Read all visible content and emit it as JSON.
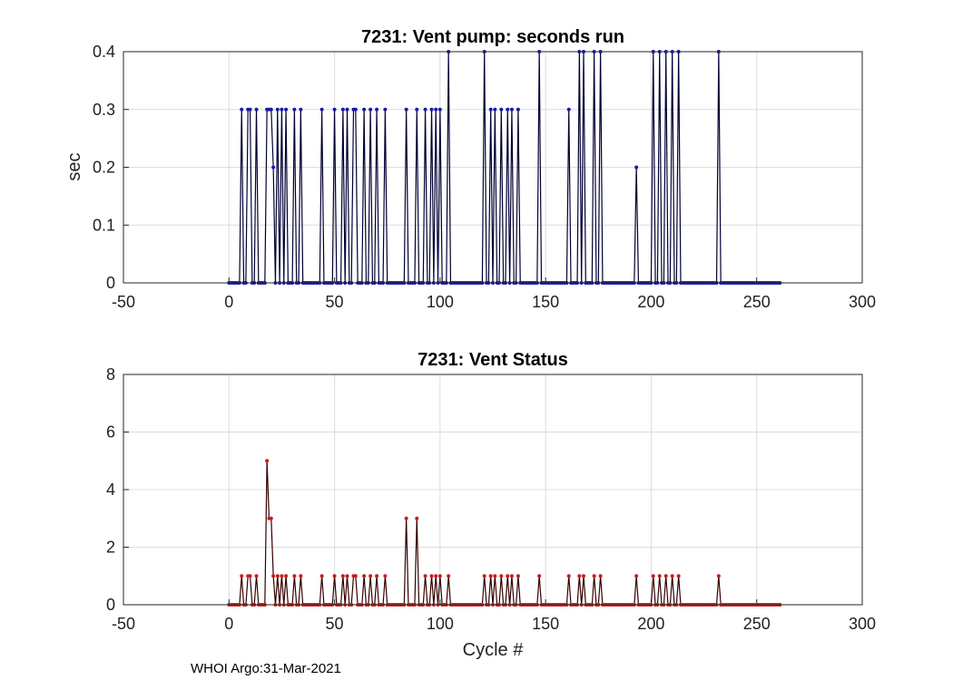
{
  "footer": {
    "text": "WHOI Argo:31-Mar-2021"
  },
  "colors": {
    "top_series": "#1a1aa6",
    "top_stem": "#000033",
    "bottom_series": "#cc1a1a",
    "bottom_stem": "#330000",
    "grid": "#dcdcdc"
  },
  "chart_data": [
    {
      "type": "line",
      "title": "7231: Vent pump: seconds run",
      "xlabel": "",
      "ylabel": "sec",
      "xlim": [
        -50,
        300
      ],
      "ylim": [
        0,
        0.4
      ],
      "xticks": [
        -50,
        0,
        50,
        100,
        150,
        200,
        250,
        300
      ],
      "yticks": [
        0,
        0.1,
        0.2,
        0.3,
        0.4
      ],
      "grid": true,
      "x_range": [
        0,
        261
      ],
      "baseline": 0,
      "nonzero_points": [
        [
          6,
          0.3
        ],
        [
          9,
          0.3
        ],
        [
          10,
          0.3
        ],
        [
          13,
          0.3
        ],
        [
          18,
          0.3
        ],
        [
          19,
          0.3
        ],
        [
          20,
          0.3
        ],
        [
          21,
          0.2
        ],
        [
          23,
          0.3
        ],
        [
          25,
          0.3
        ],
        [
          27,
          0.3
        ],
        [
          31,
          0.3
        ],
        [
          34,
          0.3
        ],
        [
          44,
          0.3
        ],
        [
          50,
          0.3
        ],
        [
          54,
          0.3
        ],
        [
          56,
          0.3
        ],
        [
          59,
          0.3
        ],
        [
          60,
          0.3
        ],
        [
          64,
          0.3
        ],
        [
          67,
          0.3
        ],
        [
          70,
          0.3
        ],
        [
          74,
          0.3
        ],
        [
          84,
          0.3
        ],
        [
          89,
          0.3
        ],
        [
          93,
          0.3
        ],
        [
          96,
          0.3
        ],
        [
          98,
          0.3
        ],
        [
          100,
          0.3
        ],
        [
          104,
          0.4
        ],
        [
          121,
          0.4
        ],
        [
          124,
          0.3
        ],
        [
          126,
          0.3
        ],
        [
          129,
          0.3
        ],
        [
          132,
          0.3
        ],
        [
          134,
          0.3
        ],
        [
          137,
          0.3
        ],
        [
          147,
          0.4
        ],
        [
          161,
          0.3
        ],
        [
          166,
          0.4
        ],
        [
          168,
          0.4
        ],
        [
          173,
          0.4
        ],
        [
          176,
          0.4
        ],
        [
          193,
          0.2
        ],
        [
          201,
          0.4
        ],
        [
          204,
          0.4
        ],
        [
          207,
          0.4
        ],
        [
          210,
          0.4
        ],
        [
          213,
          0.4
        ],
        [
          232,
          0.4
        ]
      ]
    },
    {
      "type": "line",
      "title": "7231: Vent Status",
      "xlabel": "Cycle #",
      "ylabel": "",
      "xlim": [
        -50,
        300
      ],
      "ylim": [
        0,
        8
      ],
      "xticks": [
        -50,
        0,
        50,
        100,
        150,
        200,
        250,
        300
      ],
      "yticks": [
        0,
        2,
        4,
        6,
        8
      ],
      "grid": true,
      "x_range": [
        0,
        261
      ],
      "baseline": 0,
      "nonzero_points": [
        [
          6,
          1
        ],
        [
          9,
          1
        ],
        [
          10,
          1
        ],
        [
          13,
          1
        ],
        [
          18,
          5
        ],
        [
          19,
          3
        ],
        [
          20,
          3
        ],
        [
          21,
          1
        ],
        [
          23,
          1
        ],
        [
          25,
          1
        ],
        [
          27,
          1
        ],
        [
          31,
          1
        ],
        [
          34,
          1
        ],
        [
          44,
          1
        ],
        [
          50,
          1
        ],
        [
          54,
          1
        ],
        [
          56,
          1
        ],
        [
          59,
          1
        ],
        [
          60,
          1
        ],
        [
          64,
          1
        ],
        [
          67,
          1
        ],
        [
          70,
          1
        ],
        [
          74,
          1
        ],
        [
          84,
          3
        ],
        [
          89,
          3
        ],
        [
          93,
          1
        ],
        [
          96,
          1
        ],
        [
          98,
          1
        ],
        [
          100,
          1
        ],
        [
          104,
          1
        ],
        [
          121,
          1
        ],
        [
          124,
          1
        ],
        [
          126,
          1
        ],
        [
          129,
          1
        ],
        [
          132,
          1
        ],
        [
          134,
          1
        ],
        [
          137,
          1
        ],
        [
          147,
          1
        ],
        [
          161,
          1
        ],
        [
          166,
          1
        ],
        [
          168,
          1
        ],
        [
          173,
          1
        ],
        [
          176,
          1
        ],
        [
          193,
          1
        ],
        [
          201,
          1
        ],
        [
          204,
          1
        ],
        [
          207,
          1
        ],
        [
          210,
          1
        ],
        [
          213,
          1
        ],
        [
          232,
          1
        ]
      ]
    }
  ]
}
